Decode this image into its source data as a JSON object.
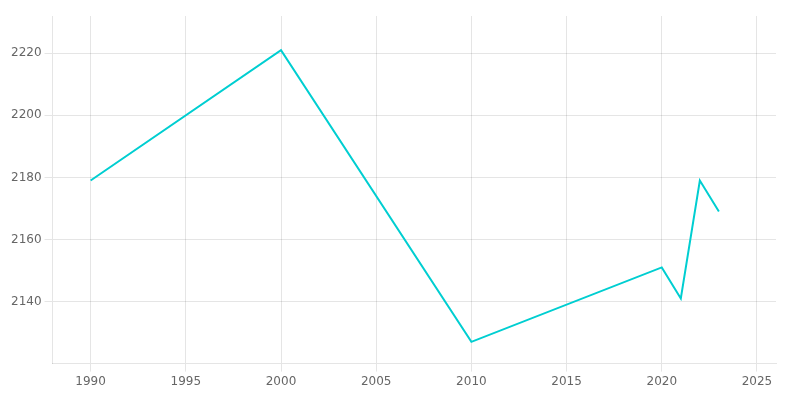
{
  "chart_data": {
    "type": "line",
    "x": [
      1990,
      2000,
      2010,
      2020,
      2021,
      2022,
      2023
    ],
    "values": [
      2179,
      2221,
      2127,
      2151,
      2141,
      2179,
      2169
    ],
    "color": "#00CED1",
    "xlim": [
      1988,
      2026
    ],
    "ylim": [
      2120,
      2232
    ],
    "xticks": [
      1990,
      1995,
      2000,
      2005,
      2010,
      2015,
      2020,
      2025
    ],
    "yticks": [
      2140,
      2160,
      2180,
      2200,
      2220
    ],
    "grid": true
  }
}
